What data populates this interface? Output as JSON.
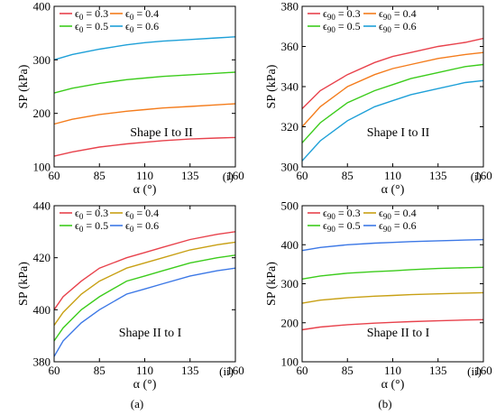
{
  "colors": {
    "red": "#e8424c",
    "orange": "#f47c1c",
    "green": "#3ccc1c",
    "cyan": "#1ea0d8",
    "gold": "#c8a014",
    "blue": "#3c78e6"
  },
  "captions": [
    "(a)",
    "(b)"
  ],
  "chart_data": [
    {
      "type": "line",
      "panel_label": "(i)",
      "annotation": "Shape I to II",
      "xlabel": "α (°)",
      "ylabel": "SP (kPa)",
      "xlim": [
        60,
        160
      ],
      "ylim": [
        100,
        400
      ],
      "xticks": [
        "60",
        "85",
        "110",
        "135",
        "160"
      ],
      "yticks": [
        "100",
        "200",
        "300",
        "400"
      ],
      "grid": false,
      "legend": "top-left, 2 columns",
      "x": [
        60,
        70,
        85,
        100,
        110,
        120,
        135,
        150,
        160
      ],
      "series": [
        {
          "name": "ϵ0 = 0.3",
          "name_base": "ϵ",
          "name_sub": "0",
          "name_rest": " = 0.3",
          "color": "#e8424c",
          "values": [
            120,
            128,
            137,
            143,
            146,
            149,
            152,
            154,
            155
          ]
        },
        {
          "name": "ϵ0 = 0.4",
          "name_base": "ϵ",
          "name_sub": "0",
          "name_rest": " = 0.4",
          "color": "#f47c1c",
          "values": [
            180,
            189,
            198,
            204,
            207,
            210,
            213,
            216,
            218
          ]
        },
        {
          "name": "ϵ0 = 0.5",
          "name_base": "ϵ",
          "name_sub": "0",
          "name_rest": " = 0.5",
          "color": "#3ccc1c",
          "values": [
            238,
            247,
            256,
            263,
            266,
            269,
            272,
            275,
            277
          ]
        },
        {
          "name": "ϵ0 = 0.6",
          "name_base": "ϵ",
          "name_sub": "0",
          "name_rest": " = 0.6",
          "color": "#1ea0d8",
          "values": [
            300,
            310,
            320,
            328,
            332,
            335,
            338,
            341,
            343
          ]
        }
      ]
    },
    {
      "type": "line",
      "panel_label": "(i)",
      "annotation": "Shape I to II",
      "xlabel": "α (°)",
      "ylabel": "SP (kPa)",
      "xlim": [
        60,
        160
      ],
      "ylim": [
        300,
        380
      ],
      "xticks": [
        "60",
        "85",
        "110",
        "135",
        "160"
      ],
      "yticks": [
        "300",
        "320",
        "340",
        "360",
        "380"
      ],
      "grid": false,
      "legend": "top-left, 2 columns",
      "x": [
        60,
        70,
        85,
        100,
        110,
        120,
        135,
        150,
        160
      ],
      "series": [
        {
          "name": "ϵ90 = 0.3",
          "name_base": "ϵ",
          "name_sub": "90",
          "name_rest": " = 0.3",
          "color": "#e8424c",
          "values": [
            329,
            338,
            346,
            352,
            355,
            357,
            360,
            362,
            364
          ]
        },
        {
          "name": "ϵ90 = 0.4",
          "name_base": "ϵ",
          "name_sub": "90",
          "name_rest": " = 0.4",
          "color": "#f47c1c",
          "values": [
            320,
            330,
            340,
            346,
            349,
            351,
            354,
            356,
            357
          ]
        },
        {
          "name": "ϵ90 = 0.5",
          "name_base": "ϵ",
          "name_sub": "90",
          "name_rest": " = 0.5",
          "color": "#3ccc1c",
          "values": [
            312,
            322,
            332,
            338,
            341,
            344,
            347,
            350,
            351
          ]
        },
        {
          "name": "ϵ90 = 0.6",
          "name_base": "ϵ",
          "name_sub": "90",
          "name_rest": " = 0.6",
          "color": "#1ea0d8",
          "values": [
            303,
            313,
            323,
            330,
            333,
            336,
            339,
            342,
            343
          ]
        }
      ]
    },
    {
      "type": "line",
      "panel_label": "(ii)",
      "annotation": "Shape II to I",
      "xlabel": "α (°)",
      "ylabel": "SP (kPa)",
      "xlim": [
        60,
        160
      ],
      "ylim": [
        380,
        440
      ],
      "xticks": [
        "60",
        "85",
        "110",
        "135",
        "160"
      ],
      "yticks": [
        "380",
        "400",
        "420",
        "440"
      ],
      "grid": false,
      "legend": "top-left, 2 columns",
      "x": [
        60,
        65,
        75,
        85,
        100,
        110,
        120,
        135,
        150,
        160
      ],
      "series": [
        {
          "name": "ϵ0 = 0.3",
          "name_base": "ϵ",
          "name_sub": "0",
          "name_rest": " = 0.3",
          "color": "#e8424c",
          "values": [
            400,
            405,
            411,
            416,
            420,
            422,
            424,
            427,
            429,
            430
          ]
        },
        {
          "name": "ϵ0 = 0.4",
          "name_base": "ϵ",
          "name_sub": "0",
          "name_rest": " = 0.4",
          "color": "#c8a014",
          "values": [
            394,
            399,
            406,
            411,
            416,
            418,
            420,
            423,
            425,
            426
          ]
        },
        {
          "name": "ϵ0 = 0.5",
          "name_base": "ϵ",
          "name_sub": "0",
          "name_rest": " = 0.5",
          "color": "#3ccc1c",
          "values": [
            388,
            393,
            400,
            405,
            411,
            413,
            415,
            418,
            420,
            421
          ]
        },
        {
          "name": "ϵ0 = 0.6",
          "name_base": "ϵ",
          "name_sub": "0",
          "name_rest": " = 0.6",
          "color": "#3c78e6",
          "values": [
            382,
            388,
            395,
            400,
            406,
            408,
            410,
            413,
            415,
            416
          ]
        }
      ]
    },
    {
      "type": "line",
      "panel_label": "(ii)",
      "annotation": "Shape II to I",
      "xlabel": "α (°)",
      "ylabel": "SP (kPa)",
      "xlim": [
        60,
        160
      ],
      "ylim": [
        100,
        500
      ],
      "xticks": [
        "60",
        "85",
        "110",
        "135",
        "160"
      ],
      "yticks": [
        "100",
        "200",
        "300",
        "400",
        "500"
      ],
      "grid": false,
      "legend": "top-left, 2 columns",
      "x": [
        60,
        70,
        85,
        100,
        110,
        120,
        135,
        150,
        160
      ],
      "series": [
        {
          "name": "ϵ90 = 0.3",
          "name_base": "ϵ",
          "name_sub": "90",
          "name_rest": " = 0.3",
          "color": "#e8424c",
          "values": [
            182,
            189,
            195,
            199,
            201,
            203,
            205,
            207,
            208
          ]
        },
        {
          "name": "ϵ90 = 0.4",
          "name_base": "ϵ",
          "name_sub": "90",
          "name_rest": " = 0.4",
          "color": "#c8a014",
          "values": [
            250,
            258,
            264,
            268,
            270,
            272,
            274,
            276,
            277
          ]
        },
        {
          "name": "ϵ90 = 0.5",
          "name_base": "ϵ",
          "name_sub": "90",
          "name_rest": " = 0.5",
          "color": "#3ccc1c",
          "values": [
            312,
            320,
            327,
            331,
            333,
            336,
            339,
            341,
            342
          ]
        },
        {
          "name": "ϵ90 = 0.6",
          "name_base": "ϵ",
          "name_sub": "90",
          "name_rest": " = 0.6",
          "color": "#3c78e6",
          "values": [
            385,
            393,
            400,
            404,
            406,
            408,
            410,
            412,
            413
          ]
        }
      ]
    }
  ]
}
